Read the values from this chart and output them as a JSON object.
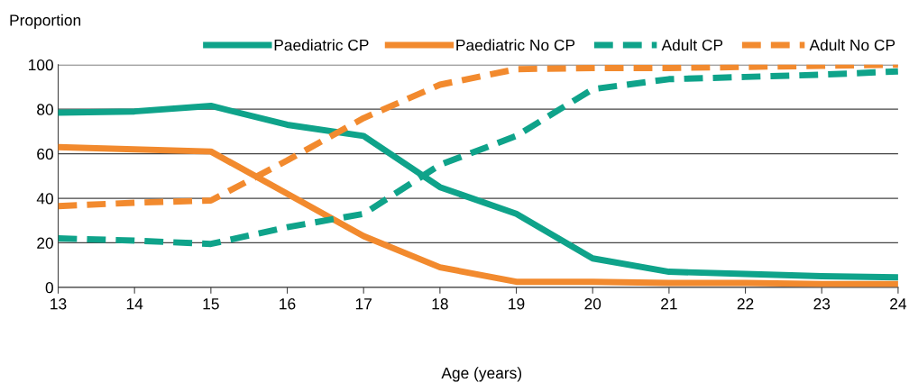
{
  "chart_data": {
    "type": "line",
    "ylabel": "Proportion",
    "xlabel": "Age (years)",
    "x": [
      13,
      14,
      15,
      16,
      17,
      18,
      19,
      20,
      21,
      22,
      23,
      24
    ],
    "xlim": [
      13,
      24
    ],
    "xticks": [
      13,
      14,
      15,
      16,
      17,
      18,
      19,
      20,
      21,
      22,
      23,
      24
    ],
    "ylim": [
      0,
      100
    ],
    "yticks": [
      0,
      20,
      40,
      60,
      80,
      100
    ],
    "grid": "y",
    "legend": "top right",
    "marker": "none",
    "series": [
      {
        "name": "Paediatric CP",
        "color": "#0fa38a",
        "line_style": "solid",
        "values": [
          78.5,
          79,
          81.5,
          73,
          68,
          45,
          33,
          13,
          7,
          6,
          5,
          4.5
        ]
      },
      {
        "name": "Paediatric No CP",
        "color": "#f28a2e",
        "line_style": "solid",
        "values": [
          63,
          62,
          61,
          42,
          23,
          9,
          2.5,
          2.5,
          2,
          2,
          1.5,
          1.5
        ]
      },
      {
        "name": "Adult CP",
        "color": "#0fa38a",
        "line_style": "dashed",
        "values": [
          22,
          21,
          19.5,
          27,
          33,
          55,
          68,
          89,
          93.5,
          94.5,
          95.5,
          97
        ]
      },
      {
        "name": "Adult No CP",
        "color": "#f28a2e",
        "line_style": "dashed",
        "values": [
          36.5,
          38,
          39,
          57,
          76,
          91,
          98,
          98.5,
          98.5,
          99,
          99.5,
          100
        ]
      }
    ]
  }
}
